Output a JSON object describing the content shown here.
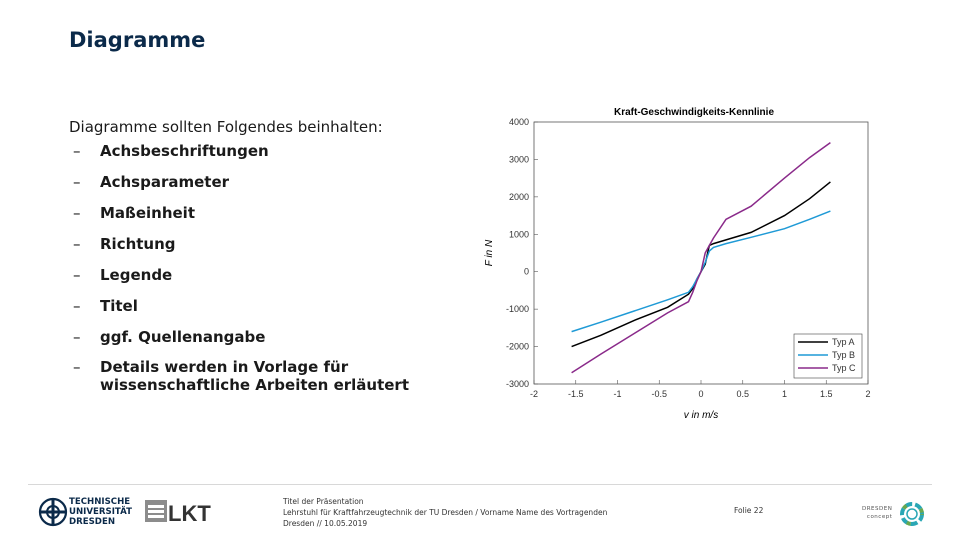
{
  "slide": {
    "title": "Diagramme",
    "intro": "Diagramme sollten Folgendes beinhalten:",
    "bullets": [
      "Achsbeschriftungen",
      "Achsparameter",
      "Maßeinheit",
      "Richtung",
      "Legende",
      "Titel",
      "ggf. Quellenangabe",
      "Details werden in Vorlage für wissenschaftliche Arbeiten erläutert"
    ],
    "bullet_marker": "–"
  },
  "chart_data": {
    "type": "line",
    "title": "Kraft-Geschwindigkeits-Kennlinie",
    "xlabel": "v in m/s",
    "ylabel": "F in N",
    "xlim": [
      -2,
      2
    ],
    "ylim": [
      -3000,
      4000
    ],
    "xticks": [
      "-2",
      "-1.5",
      "-1",
      "-0.5",
      "0",
      "0.5",
      "1",
      "1.5",
      "2"
    ],
    "yticks": [
      "4000",
      "3000",
      "2000",
      "1000",
      "0",
      "-1000",
      "-2000",
      "-3000"
    ],
    "legend_position": "bottom-right",
    "grid": false,
    "x": [
      -1.55,
      -1.2,
      -0.8,
      -0.4,
      -0.15,
      -0.1,
      -0.05,
      0,
      0.05,
      0.1,
      0.15,
      0.3,
      0.6,
      1.0,
      1.3,
      1.55
    ],
    "series": [
      {
        "name": "Typ A",
        "color": "#000000",
        "values": [
          -2000,
          -1700,
          -1300,
          -950,
          -600,
          -450,
          -200,
          0,
          200,
          700,
          750,
          850,
          1050,
          1500,
          1950,
          2400
        ]
      },
      {
        "name": "Typ B",
        "color": "#1f9ad6",
        "values": [
          -1600,
          -1350,
          -1050,
          -750,
          -550,
          -400,
          -200,
          0,
          250,
          550,
          650,
          750,
          920,
          1150,
          1400,
          1620
        ]
      },
      {
        "name": "Typ C",
        "color": "#8a2a8a",
        "values": [
          -2700,
          -2200,
          -1650,
          -1100,
          -800,
          -550,
          -250,
          0,
          500,
          700,
          900,
          1400,
          1750,
          2500,
          3050,
          3450
        ]
      }
    ]
  },
  "footer": {
    "tu_logo_lines": [
      "TECHNISCHE",
      "UNIVERSITÄT",
      "DRESDEN"
    ],
    "lkt_logo": "LKT",
    "info_lines": [
      "Titel der Präsentation",
      "Lehrstuhl für Kraftfahrzeugtechnik der TU Dresden / Vorname Name des Vortragenden",
      "Dresden // 10.05.2019"
    ],
    "page": "Folie 22",
    "dc_lines": [
      "DRESDEN",
      "concept"
    ],
    "colors": {
      "tu_blue": "#0b2a4a",
      "dc_green": "#6aa84f",
      "dc_teal": "#2aa7b5"
    }
  }
}
